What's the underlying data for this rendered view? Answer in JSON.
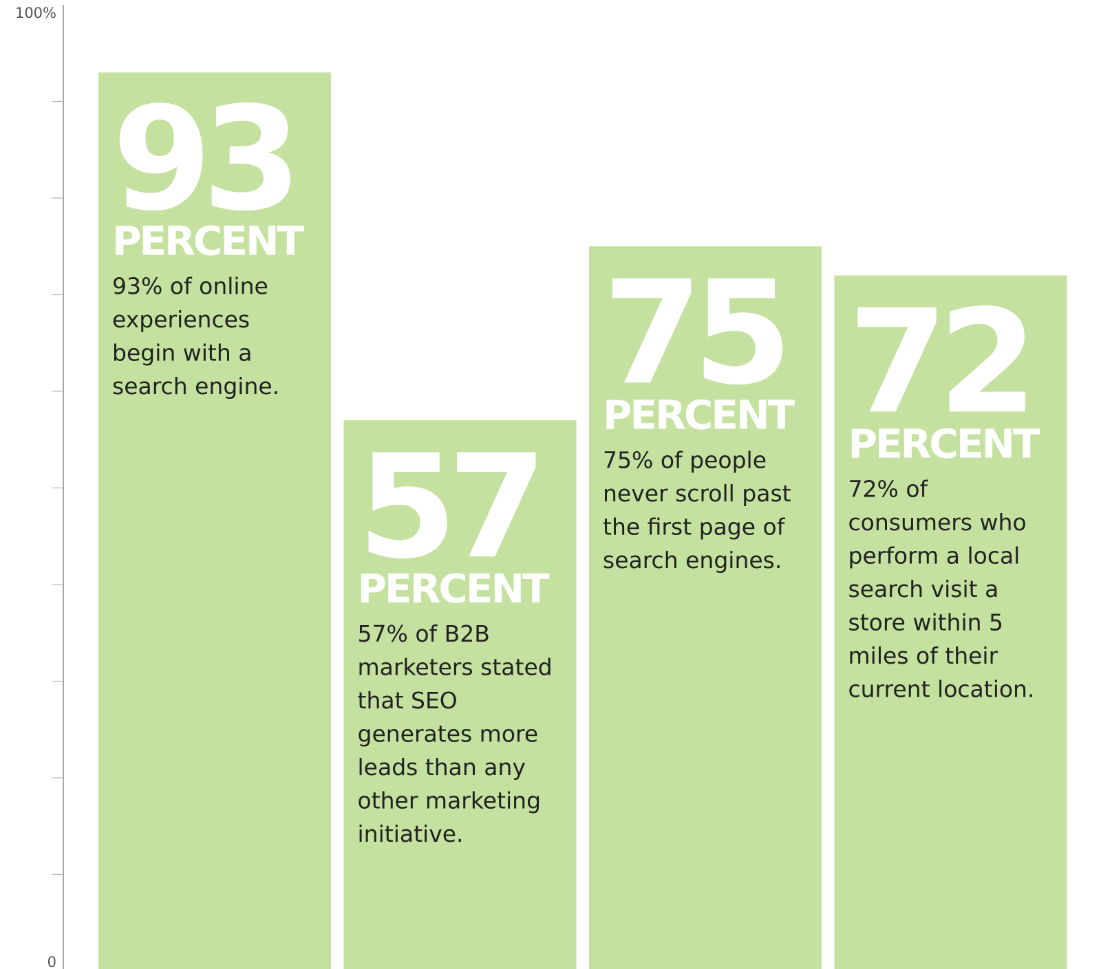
{
  "chart_data": {
    "type": "bar",
    "ylim": [
      0,
      100
    ],
    "y_tick_labels": {
      "top": "100%",
      "bottom": "0"
    },
    "minor_tick_count": 9,
    "grid": false,
    "bar_color": "#c5e1a0",
    "bars": [
      {
        "value": 93,
        "big_label": "93",
        "unit_label": "PERCENT",
        "description": [
          "93% of online",
          "experiences",
          "begin with a",
          "search engine."
        ]
      },
      {
        "value": 57,
        "big_label": "57",
        "unit_label": "PERCENT",
        "description": [
          "57% of B2B",
          "marketers stated",
          "that SEO",
          "generates more",
          "leads than any",
          "other marketing",
          "initiative."
        ]
      },
      {
        "value": 75,
        "big_label": "75",
        "unit_label": "PERCENT",
        "description": [
          "75% of people",
          "never scroll past",
          "the first page of",
          "search engines."
        ]
      },
      {
        "value": 72,
        "big_label": "72",
        "unit_label": "PERCENT",
        "description": [
          "72% of",
          "consumers who",
          "perform a local",
          "search visit a",
          "store within 5",
          "miles of their",
          "current location."
        ]
      }
    ]
  }
}
